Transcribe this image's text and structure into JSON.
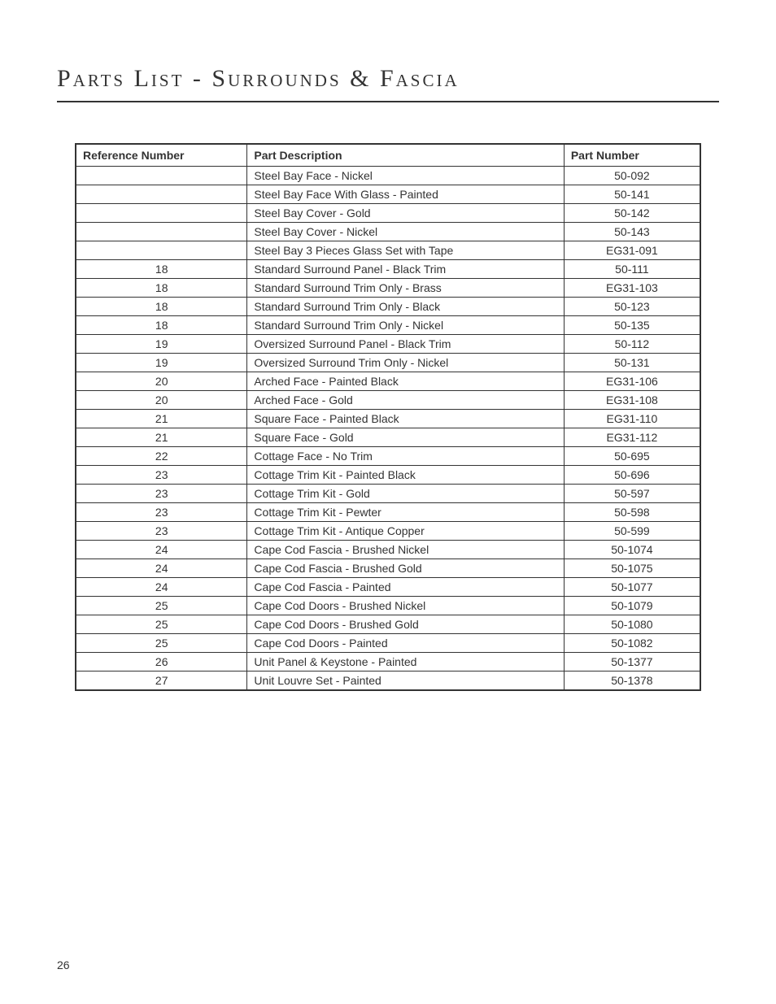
{
  "title": "Parts List - Surrounds & Fascia",
  "pageNumber": "26",
  "table": {
    "headers": {
      "ref": "Reference Number",
      "desc": "Part Description",
      "part": "Part Number"
    },
    "rows": [
      {
        "ref": "",
        "desc": "Steel Bay Face - Nickel",
        "part": "50-092"
      },
      {
        "ref": "",
        "desc": "Steel Bay Face With Glass -  Painted",
        "part": "50-141"
      },
      {
        "ref": "",
        "desc": "Steel Bay Cover - Gold",
        "part": "50-142"
      },
      {
        "ref": "",
        "desc": "Steel Bay Cover - Nickel",
        "part": "50-143"
      },
      {
        "ref": "",
        "desc": "Steel Bay 3 Pieces Glass Set with Tape",
        "part": "EG31-091"
      },
      {
        "ref": "18",
        "desc": "Standard Surround Panel - Black Trim",
        "part": "50-111"
      },
      {
        "ref": "18",
        "desc": "Standard Surround Trim Only - Brass",
        "part": "EG31-103"
      },
      {
        "ref": "18",
        "desc": "Standard Surround Trim Only - Black",
        "part": "50-123"
      },
      {
        "ref": "18",
        "desc": "Standard Surround Trim Only - Nickel",
        "part": "50-135"
      },
      {
        "ref": "19",
        "desc": "Oversized Surround Panel - Black Trim",
        "part": "50-112"
      },
      {
        "ref": "19",
        "desc": "Oversized Surround Trim Only - Nickel",
        "part": "50-131"
      },
      {
        "ref": "20",
        "desc": "Arched Face - Painted Black",
        "part": "EG31-106"
      },
      {
        "ref": "20",
        "desc": "Arched Face - Gold",
        "part": "EG31-108"
      },
      {
        "ref": "21",
        "desc": "Square Face - Painted Black",
        "part": "EG31-110"
      },
      {
        "ref": "21",
        "desc": "Square Face - Gold",
        "part": "EG31-112"
      },
      {
        "ref": "22",
        "desc": "Cottage Face - No Trim",
        "part": "50-695"
      },
      {
        "ref": "23",
        "desc": "Cottage Trim Kit - Painted Black",
        "part": "50-696"
      },
      {
        "ref": "23",
        "desc": "Cottage Trim Kit - Gold",
        "part": "50-597"
      },
      {
        "ref": "23",
        "desc": "Cottage Trim Kit - Pewter",
        "part": "50-598"
      },
      {
        "ref": "23",
        "desc": "Cottage Trim Kit - Antique Copper",
        "part": "50-599"
      },
      {
        "ref": "24",
        "desc": "Cape Cod Fascia - Brushed Nickel",
        "part": "50-1074"
      },
      {
        "ref": "24",
        "desc": "Cape Cod Fascia - Brushed Gold",
        "part": "50-1075"
      },
      {
        "ref": "24",
        "desc": "Cape Cod Fascia - Painted",
        "part": "50-1077"
      },
      {
        "ref": "25",
        "desc": "Cape Cod Doors - Brushed Nickel",
        "part": "50-1079"
      },
      {
        "ref": "25",
        "desc": "Cape Cod Doors - Brushed Gold",
        "part": "50-1080"
      },
      {
        "ref": "25",
        "desc": "Cape Cod Doors - Painted",
        "part": "50-1082"
      },
      {
        "ref": "26",
        "desc": "Unit Panel & Keystone -  Painted",
        "part": "50-1377"
      },
      {
        "ref": "27",
        "desc": "Unit Louvre Set  -  Painted",
        "part": "50-1378"
      }
    ]
  }
}
